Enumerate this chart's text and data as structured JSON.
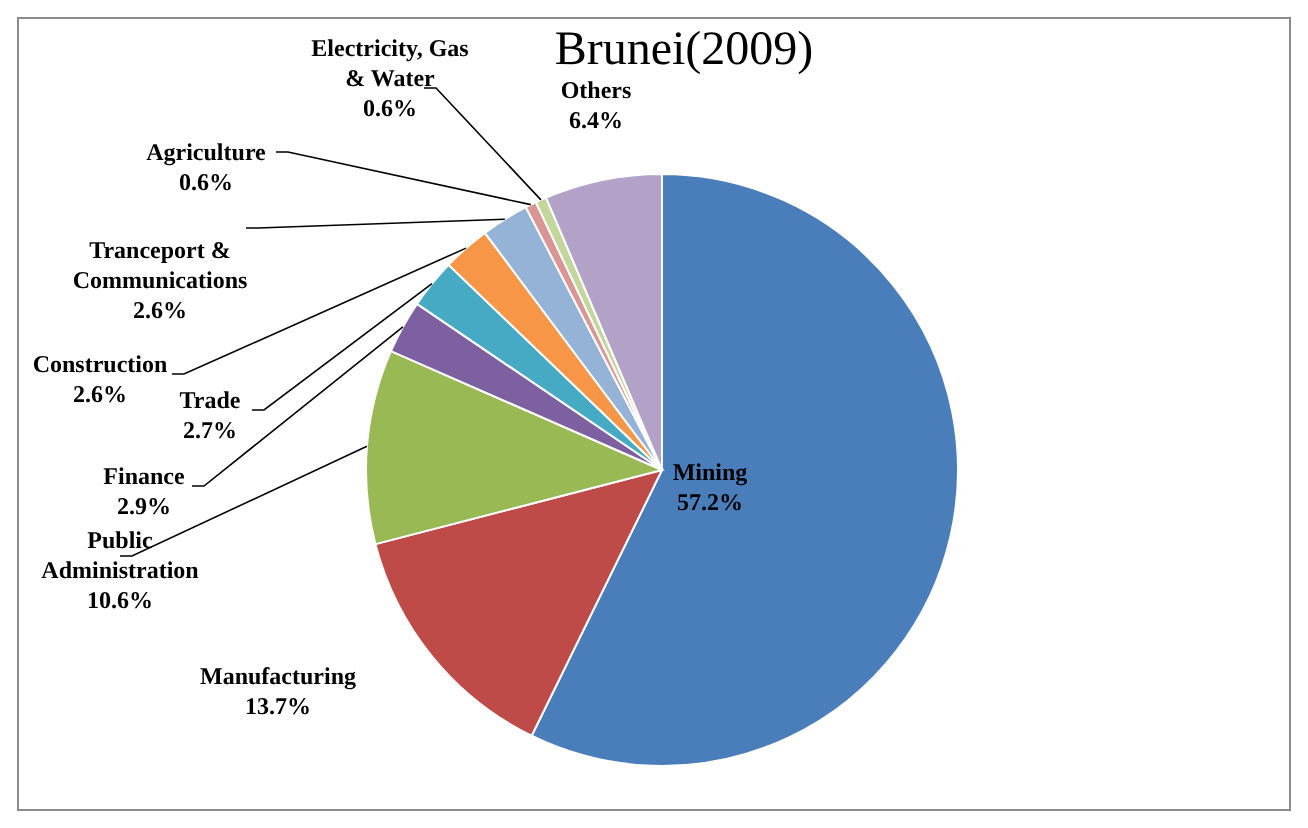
{
  "chart_data": {
    "type": "pie",
    "title": "Brunei(2009)",
    "categories": [
      "Mining",
      "Manufacturing",
      "Public Administration",
      "Finance",
      "Trade",
      "Construction",
      "Tranceport & Communications",
      "Agriculture",
      "Electricity, Gas & Water",
      "Others"
    ],
    "values": [
      57.2,
      13.7,
      10.6,
      2.9,
      2.7,
      2.6,
      2.6,
      0.6,
      0.6,
      6.4
    ],
    "colors": [
      "#4a7ebb",
      "#be4b48",
      "#98b954",
      "#7d60a0",
      "#46aac5",
      "#f79646",
      "#95b3d7",
      "#d99694",
      "#c3d69b",
      "#b3a2c7"
    ],
    "value_labels": [
      "57.2%",
      "13.7%",
      "10.6%",
      "2.9%",
      "2.7%",
      "2.6%",
      "2.6%",
      "0.6%",
      "0.6%",
      "6.4%"
    ]
  }
}
